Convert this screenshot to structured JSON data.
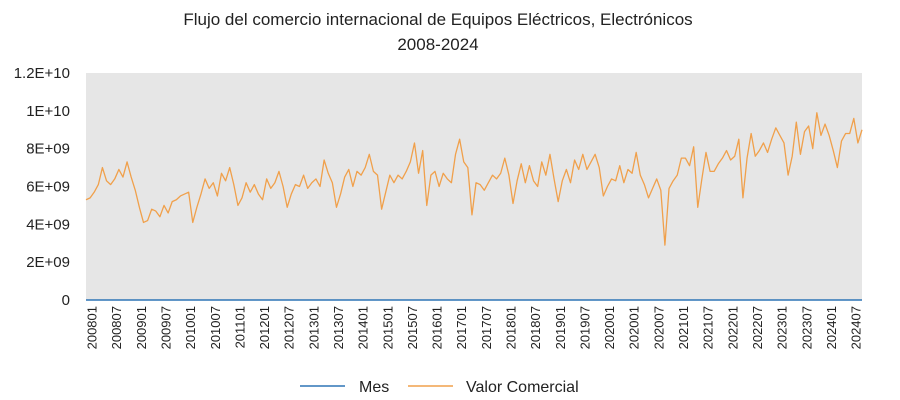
{
  "chart_data": {
    "type": "line",
    "title_lines": [
      "Flujo del comercio internacional de Equipos Eléctricos, Electrónicos",
      "2008-2024"
    ],
    "ylim": [
      0,
      12000000000
    ],
    "y_ticks": [
      {
        "value": 0,
        "label": "0"
      },
      {
        "value": 2000000000,
        "label": "2E+09"
      },
      {
        "value": 4000000000,
        "label": "4E+09"
      },
      {
        "value": 6000000000,
        "label": "6E+09"
      },
      {
        "value": 8000000000,
        "label": "8E+09"
      },
      {
        "value": 10000000000,
        "label": "1E+10"
      },
      {
        "value": 12000000000,
        "label": "1.2E+10"
      }
    ],
    "x_tick_labels": [
      "200801",
      "200807",
      "200901",
      "200907",
      "201001",
      "201007",
      "201101",
      "201201",
      "201207",
      "201301",
      "201307",
      "201401",
      "201501",
      "201507",
      "201601",
      "201701",
      "201707",
      "201801",
      "201807",
      "201901",
      "201907",
      "202001",
      "202001",
      "202007",
      "202101",
      "202107",
      "202201",
      "202207",
      "202301",
      "202307",
      "202401",
      "202407"
    ],
    "grid": false,
    "legend_position": "bottom",
    "series": [
      {
        "name": "Mes",
        "color": "#2e75b6",
        "values": "zero"
      },
      {
        "name": "Valor Comercial",
        "color": "#f0a04b",
        "values": [
          5300000000.0,
          5400000000.0,
          5700000000.0,
          6100000000.0,
          7000000000.0,
          6300000000.0,
          6100000000.0,
          6400000000.0,
          6900000000.0,
          6500000000.0,
          7300000000.0,
          6500000000.0,
          5800000000.0,
          4900000000.0,
          4100000000.0,
          4200000000.0,
          4800000000.0,
          4700000000.0,
          4400000000.0,
          5000000000.0,
          4600000000.0,
          5200000000.0,
          5300000000.0,
          5500000000.0,
          5600000000.0,
          5700000000.0,
          4100000000.0,
          4900000000.0,
          5600000000.0,
          6400000000.0,
          5900000000.0,
          6200000000.0,
          5500000000.0,
          6700000000.0,
          6300000000.0,
          7000000000.0,
          6100000000.0,
          5000000000.0,
          5400000000.0,
          6200000000.0,
          5700000000.0,
          6100000000.0,
          5600000000.0,
          5300000000.0,
          6400000000.0,
          5900000000.0,
          6200000000.0,
          6800000000.0,
          6000000000.0,
          4900000000.0,
          5600000000.0,
          6100000000.0,
          6000000000.0,
          6600000000.0,
          5900000000.0,
          6200000000.0,
          6400000000.0,
          6000000000.0,
          7400000000.0,
          6700000000.0,
          6200000000.0,
          4900000000.0,
          5600000000.0,
          6500000000.0,
          6900000000.0,
          6000000000.0,
          6800000000.0,
          6600000000.0,
          7000000000.0,
          7700000000.0,
          6800000000.0,
          6600000000.0,
          4800000000.0,
          5700000000.0,
          6600000000.0,
          6200000000.0,
          6600000000.0,
          6400000000.0,
          6800000000.0,
          7300000000.0,
          8300000000.0,
          6700000000.0,
          7900000000.0,
          5000000000.0,
          6600000000.0,
          6800000000.0,
          6000000000.0,
          6700000000.0,
          6400000000.0,
          6200000000.0,
          7700000000.0,
          8500000000.0,
          7300000000.0,
          7000000000.0,
          4500000000.0,
          6200000000.0,
          6100000000.0,
          5800000000.0,
          6200000000.0,
          6600000000.0,
          6400000000.0,
          6700000000.0,
          7500000000.0,
          6600000000.0,
          5100000000.0,
          6300000000.0,
          7200000000.0,
          6200000000.0,
          7100000000.0,
          6300000000.0,
          6000000000.0,
          7300000000.0,
          6600000000.0,
          7700000000.0,
          6400000000.0,
          5200000000.0,
          6300000000.0,
          6900000000.0,
          6200000000.0,
          7400000000.0,
          6900000000.0,
          7700000000.0,
          6900000000.0,
          7300000000.0,
          7700000000.0,
          7000000000.0,
          5500000000.0,
          6000000000.0,
          6400000000.0,
          6300000000.0,
          7100000000.0,
          6200000000.0,
          6900000000.0,
          6700000000.0,
          7800000000.0,
          6600000000.0,
          6100000000.0,
          5400000000.0,
          5900000000.0,
          6400000000.0,
          5800000000.0,
          2900000000.0,
          5900000000.0,
          6300000000.0,
          6600000000.0,
          7500000000.0,
          7500000000.0,
          7100000000.0,
          8100000000.0,
          4900000000.0,
          6400000000.0,
          7800000000.0,
          6800000000.0,
          6800000000.0,
          7200000000.0,
          7500000000.0,
          7900000000.0,
          7400000000.0,
          7600000000.0,
          8500000000.0,
          5400000000.0,
          7500000000.0,
          8800000000.0,
          7600000000.0,
          7900000000.0,
          8300000000.0,
          7800000000.0,
          8500000000.0,
          9100000000.0,
          8700000000.0,
          8300000000.0,
          6600000000.0,
          7600000000.0,
          9400000000.0,
          7700000000.0,
          8900000000.0,
          9200000000.0,
          8000000000.0,
          9900000000.0,
          8700000000.0,
          9300000000.0,
          8700000000.0,
          7900000000.0,
          7000000000.0,
          8400000000.0,
          8800000000.0,
          8800000000.0,
          9600000000.0,
          8300000000.0,
          9000000000.0
        ]
      }
    ]
  }
}
